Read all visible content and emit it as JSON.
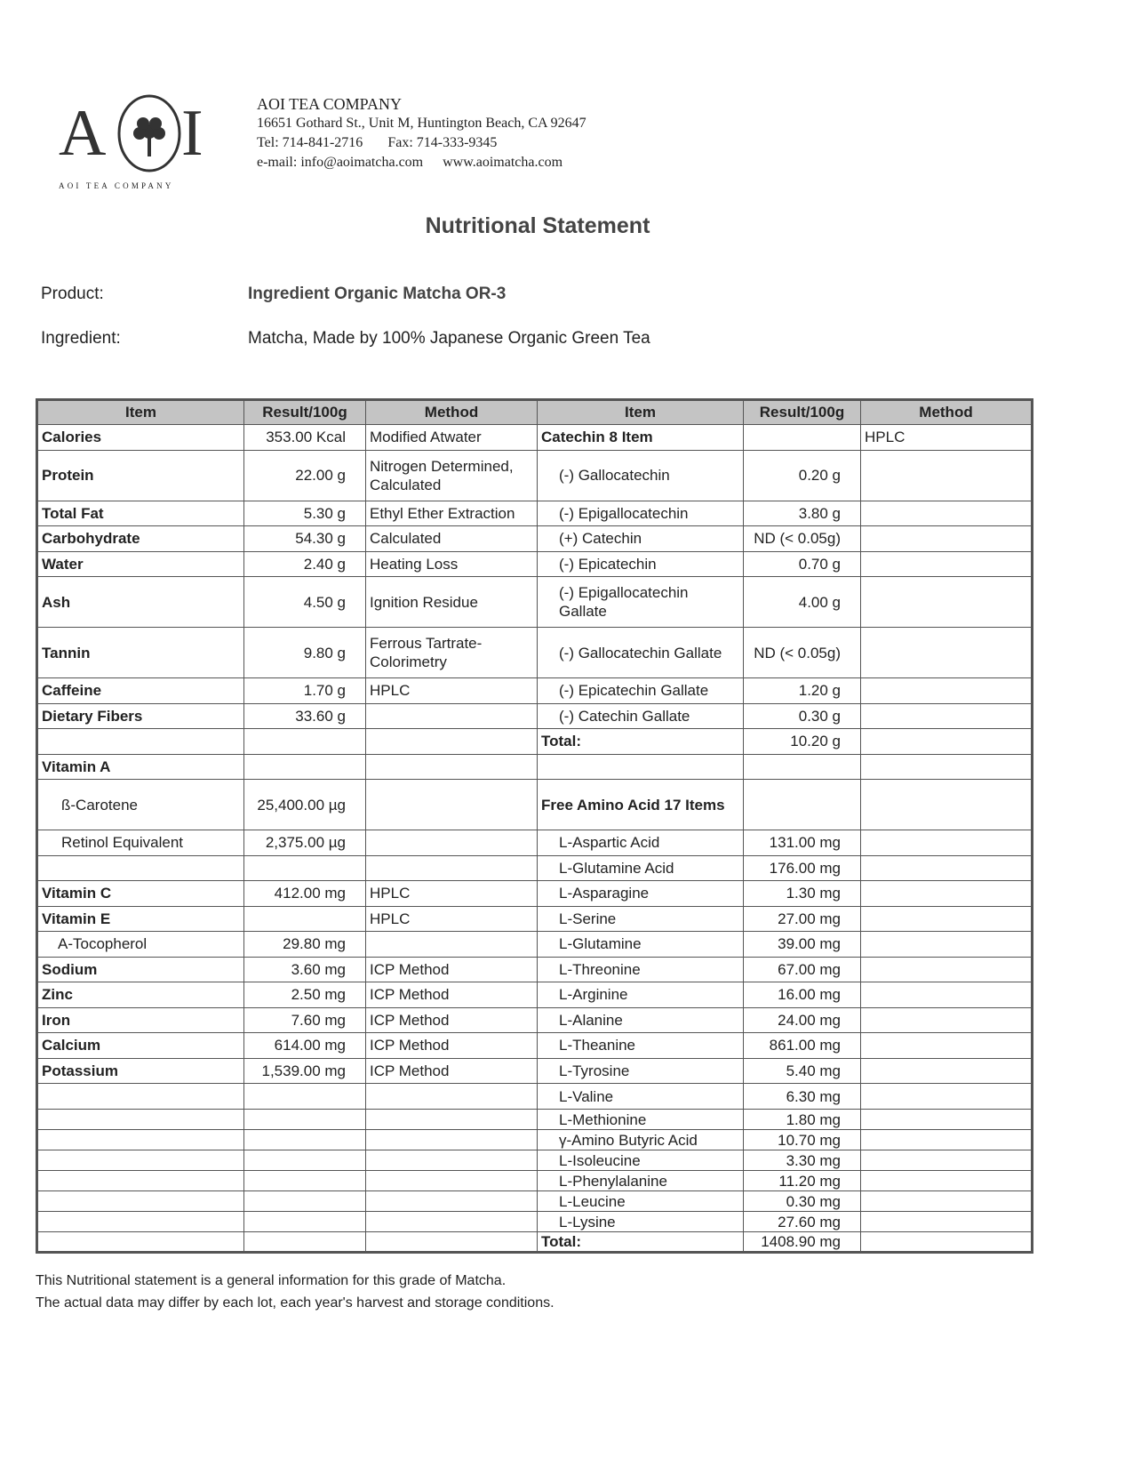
{
  "logo": {
    "left": "A",
    "right": "I",
    "caption": "AOI TEA COMPANY"
  },
  "company": {
    "name": "AOI TEA COMPANY",
    "address": "16651 Gothard St., Unit M, Huntington Beach, CA 92647",
    "tel": "Tel: 714-841-2716",
    "fax": "Fax: 714-333-9345",
    "email": "e-mail:  info@aoimatcha.com",
    "web": "www.aoimatcha.com"
  },
  "title": "Nutritional Statement",
  "fields": [
    {
      "label": "Product:",
      "value": "Ingredient Organic Matcha OR-3"
    },
    {
      "label": "Ingredient:",
      "value": "Matcha, Made by 100% Japanese Organic Green Tea"
    }
  ],
  "table": {
    "headers": [
      "Item",
      "Result/100g",
      "Method",
      "Item",
      "Result/100g",
      "Method"
    ],
    "rows": [
      [
        "Calories",
        "353.00 Kcal",
        "Modified Atwater",
        "Catechin 8 Item",
        null,
        "HPLC"
      ],
      [
        "Protein",
        "22.00 g",
        "Nitrogen Determined, Calculated",
        "(-)  Gallocatechin",
        "0.20 g",
        null
      ],
      [
        "Total Fat",
        "5.30 g",
        "Ethyl Ether Extraction",
        "(-)  Epigallocatechin",
        "3.80 g",
        null
      ],
      [
        "Carbohydrate",
        "54.30 g",
        "Calculated",
        "(+) Catechin",
        "ND (< 0.05g)",
        null
      ],
      [
        "Water",
        "2.40 g",
        "Heating Loss",
        "(-)  Epicatechin",
        "0.70 g",
        null
      ],
      [
        "Ash",
        "4.50 g",
        "Ignition Residue",
        "(-)  Epigallocatechin Gallate",
        "4.00 g",
        null
      ],
      [
        "Tannin",
        "9.80 g",
        "Ferrous Tartrate-Colorimetry",
        "(-)  Gallocatechin Gallate",
        "ND (< 0.05g)",
        null
      ],
      [
        "Caffeine",
        "1.70 g",
        "HPLC",
        "(-)  Epicatechin Gallate",
        "1.20 g",
        null
      ],
      [
        "Dietary Fibers",
        "33.60 g",
        null,
        "(-)  Catechin Gallate",
        "0.30 g",
        null
      ],
      [
        null,
        null,
        null,
        "Total:",
        "10.20 g",
        null
      ],
      [
        "Vitamin A",
        null,
        null,
        null,
        null,
        null
      ],
      [
        "ß-Carotene",
        "25,400.00 µg",
        null,
        "Free Amino Acid 17 Items",
        null,
        null
      ],
      [
        "Retinol Equivalent",
        "2,375.00 µg",
        null,
        "L-Aspartic Acid",
        "131.00 mg",
        null
      ],
      [
        null,
        null,
        null,
        "L-Glutamine Acid",
        "176.00 mg",
        null
      ],
      [
        "Vitamin C",
        "412.00 mg",
        "HPLC",
        "L-Asparagine",
        "1.30 mg",
        null
      ],
      [
        "Vitamin E",
        null,
        "HPLC",
        "L-Serine",
        "27.00 mg",
        null
      ],
      [
        "A-Tocopherol",
        "29.80 mg",
        null,
        "L-Glutamine",
        "39.00 mg",
        null
      ],
      [
        "Sodium",
        "3.60 mg",
        "ICP Method",
        "L-Threonine",
        "67.00 mg",
        null
      ],
      [
        "Zinc",
        "2.50 mg",
        "ICP Method",
        "L-Arginine",
        "16.00 mg",
        null
      ],
      [
        "Iron",
        "7.60 mg",
        "ICP Method",
        "L-Alanine",
        "24.00 mg",
        null
      ],
      [
        "Calcium",
        "614.00 mg",
        "ICP Method",
        "L-Theanine",
        "861.00 mg",
        null
      ],
      [
        "Potassium",
        "1,539.00 mg",
        "ICP Method",
        "L-Tyrosine",
        "5.40 mg",
        null
      ],
      [
        null,
        null,
        null,
        "L-Valine",
        "6.30 mg",
        null
      ],
      [
        null,
        null,
        null,
        "L-Methionine",
        "1.80 mg",
        null
      ],
      [
        null,
        null,
        null,
        "γ-Amino Butyric Acid",
        "10.70 mg",
        null
      ],
      [
        null,
        null,
        null,
        "L-Isoleucine",
        "3.30 mg",
        null
      ],
      [
        null,
        null,
        null,
        "L-Phenylalanine",
        "11.20 mg",
        null
      ],
      [
        null,
        null,
        null,
        "L-Leucine",
        "0.30 mg",
        null
      ],
      [
        null,
        null,
        null,
        "L-Lysine",
        "27.60 mg",
        null
      ],
      [
        null,
        null,
        null,
        "Total:",
        "1408.90 mg",
        null
      ]
    ]
  },
  "footer": [
    "This Nutritional statement is a general information for this grade of Matcha.",
    "The actual data may differ by each lot, each year's harvest and storage conditions."
  ]
}
